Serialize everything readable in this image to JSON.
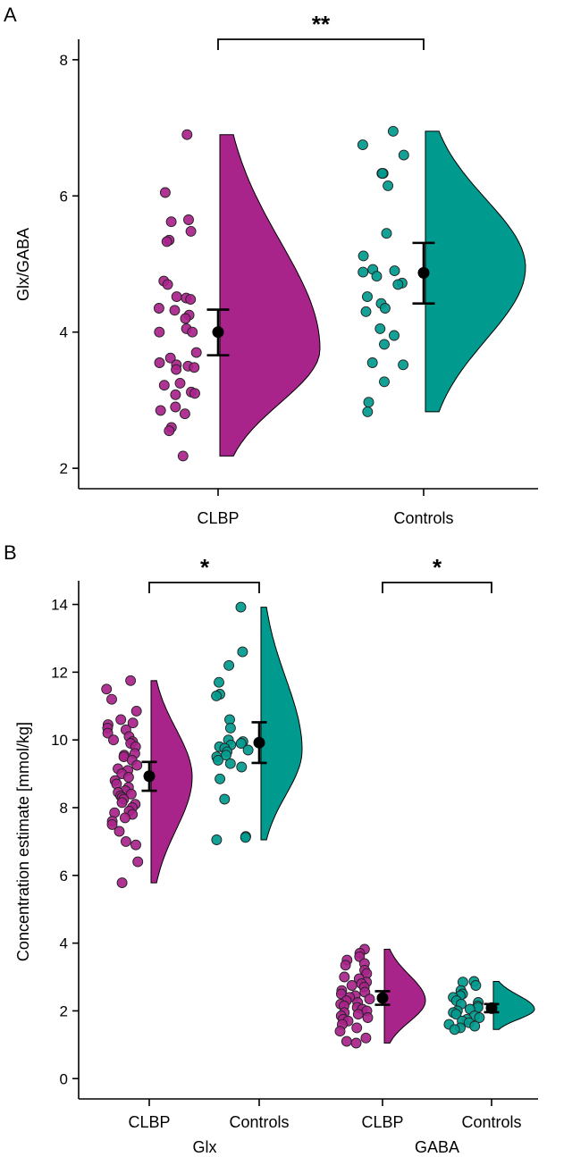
{
  "chart_data": [
    {
      "panel": "A",
      "type": "raincloud",
      "ylabel": "Glx/GABA",
      "xlabel": "",
      "ylim": [
        1.7,
        8.3
      ],
      "yticks": [
        2,
        4,
        6,
        8
      ],
      "categories": [
        "CLBP",
        "Controls"
      ],
      "significance": [
        {
          "between": [
            "CLBP",
            "Controls"
          ],
          "label": "**"
        }
      ],
      "groups": [
        {
          "name": "CLBP",
          "color": "#a8238a",
          "mean": 4.0,
          "ci": [
            3.66,
            4.33
          ],
          "density_range": [
            2.18,
            6.9
          ],
          "density_peak": 3.75,
          "points": [
            6.9,
            6.05,
            5.65,
            5.62,
            5.48,
            5.35,
            5.33,
            4.75,
            4.7,
            4.52,
            4.5,
            4.48,
            4.35,
            4.32,
            4.25,
            4.2,
            4.05,
            4.0,
            4.0,
            3.7,
            3.62,
            3.55,
            3.52,
            3.5,
            3.48,
            3.45,
            3.25,
            3.22,
            3.12,
            3.1,
            3.08,
            2.9,
            2.85,
            2.8,
            2.6,
            2.55,
            2.18
          ]
        },
        {
          "name": "Controls",
          "color": "#009a8e",
          "mean": 4.87,
          "ci": [
            4.42,
            5.31
          ],
          "density_range": [
            2.83,
            6.95
          ],
          "density_peak": 4.95,
          "points": [
            6.95,
            6.75,
            6.6,
            6.33,
            6.33,
            6.33,
            6.15,
            5.45,
            5.12,
            4.92,
            4.9,
            4.88,
            4.82,
            4.72,
            4.7,
            4.52,
            4.42,
            4.35,
            4.3,
            4.05,
            3.95,
            3.82,
            3.55,
            3.52,
            3.27,
            2.97,
            2.83
          ]
        }
      ]
    },
    {
      "panel": "B",
      "type": "raincloud",
      "ylabel": "Concentration estimate [mmol/kg]",
      "xlabel": "",
      "ylim": [
        -0.6,
        14.7
      ],
      "yticks": [
        0,
        2,
        4,
        6,
        8,
        10,
        12,
        14
      ],
      "categories": [
        "CLBP",
        "Controls",
        "CLBP",
        "Controls"
      ],
      "group_labels": [
        "Glx",
        "GABA"
      ],
      "significance": [
        {
          "between": [
            "Glx CLBP",
            "Glx Controls"
          ],
          "label": "*"
        },
        {
          "between": [
            "GABA CLBP",
            "GABA Controls"
          ],
          "label": "*"
        }
      ],
      "groups": [
        {
          "name": "Glx CLBP",
          "color": "#a8238a",
          "mean": 8.93,
          "ci": [
            8.5,
            9.35
          ],
          "density_range": [
            5.78,
            11.75
          ],
          "density_peak": 8.9,
          "points": [
            11.75,
            11.5,
            11.2,
            10.85,
            10.6,
            10.5,
            10.45,
            10.35,
            10.3,
            10.2,
            10.1,
            10.0,
            9.95,
            9.9,
            9.8,
            9.6,
            9.55,
            9.5,
            9.4,
            9.25,
            9.15,
            9.1,
            9.0,
            8.9,
            8.8,
            8.7,
            8.6,
            8.5,
            8.45,
            8.4,
            8.35,
            8.3,
            8.25,
            8.15,
            8.1,
            8.0,
            7.9,
            7.85,
            7.8,
            7.7,
            7.6,
            7.5,
            7.3,
            7.0,
            6.9,
            6.4,
            5.78
          ]
        },
        {
          "name": "Glx Controls",
          "color": "#009a8e",
          "mean": 9.92,
          "ci": [
            9.32,
            10.52
          ],
          "density_range": [
            7.05,
            13.92
          ],
          "density_peak": 9.7,
          "points": [
            13.92,
            12.6,
            12.2,
            11.7,
            11.35,
            11.3,
            10.6,
            10.35,
            10.0,
            9.95,
            9.9,
            9.85,
            9.8,
            9.75,
            9.7,
            9.65,
            9.55,
            9.5,
            9.4,
            9.3,
            9.2,
            8.85,
            8.25,
            7.15,
            7.12,
            7.05
          ]
        },
        {
          "name": "GABA CLBP",
          "color": "#a8238a",
          "mean": 2.38,
          "ci": [
            2.18,
            2.58
          ],
          "density_range": [
            1.05,
            3.82
          ],
          "density_peak": 2.3,
          "points": [
            3.82,
            3.7,
            3.6,
            3.5,
            3.4,
            3.35,
            3.2,
            3.1,
            3.0,
            2.95,
            2.85,
            2.8,
            2.75,
            2.7,
            2.6,
            2.55,
            2.5,
            2.45,
            2.4,
            2.35,
            2.3,
            2.25,
            2.2,
            2.15,
            2.1,
            2.05,
            2.0,
            1.95,
            1.9,
            1.85,
            1.8,
            1.75,
            1.7,
            1.6,
            1.5,
            1.4,
            1.2,
            1.1,
            1.05
          ]
        },
        {
          "name": "GABA Controls",
          "color": "#009a8e",
          "mean": 2.08,
          "ci": [
            1.96,
            2.2
          ],
          "density_range": [
            1.45,
            2.87
          ],
          "density_peak": 2.05,
          "points": [
            2.87,
            2.85,
            2.75,
            2.6,
            2.5,
            2.45,
            2.4,
            2.3,
            2.25,
            2.2,
            2.15,
            2.1,
            2.05,
            2.0,
            1.95,
            1.9,
            1.85,
            1.8,
            1.75,
            1.7,
            1.65,
            1.6,
            1.55,
            1.5,
            1.45
          ]
        }
      ]
    }
  ]
}
